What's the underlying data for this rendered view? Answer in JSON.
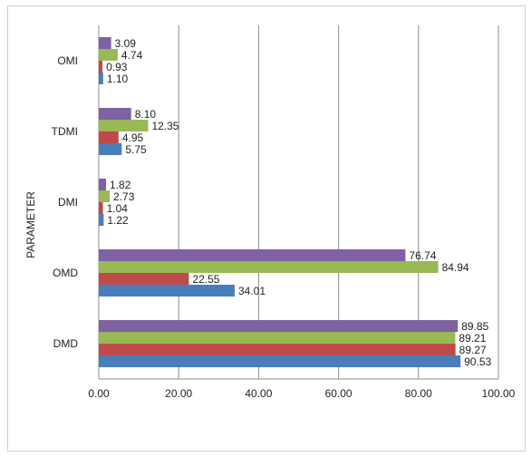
{
  "chart_data": {
    "type": "bar",
    "orientation": "horizontal",
    "categories": [
      "DMD",
      "OMD",
      "DMI",
      "TDMI",
      "OMI"
    ],
    "series": [
      {
        "color": "#4a7ebb",
        "values": [
          90.53,
          34.01,
          1.22,
          5.75,
          1.1
        ]
      },
      {
        "color": "#be4b48",
        "values": [
          89.27,
          22.55,
          1.04,
          4.95,
          0.93
        ]
      },
      {
        "color": "#98b954",
        "values": [
          89.21,
          84.94,
          2.73,
          12.35,
          4.74
        ]
      },
      {
        "color": "#7e62a1",
        "values": [
          89.85,
          76.74,
          1.82,
          8.1,
          3.09
        ]
      }
    ],
    "data_labels": [
      [
        "90.53",
        "34.01",
        "1.22",
        "5.75",
        "1.10"
      ],
      [
        "89.27",
        "22.55",
        "1.04",
        "4.95",
        "0.93"
      ],
      [
        "89.21",
        "84.94",
        "2.73",
        "12.35",
        "4.74"
      ],
      [
        "89.85",
        "76.74",
        "1.82",
        "8.10",
        "3.09"
      ]
    ],
    "ylabel": "PARAMETER",
    "xlim": [
      0,
      100
    ],
    "x_ticks": [
      "0.00",
      "20.00",
      "40.00",
      "60.00",
      "80.00",
      "100.00"
    ],
    "grid": "vertical"
  }
}
